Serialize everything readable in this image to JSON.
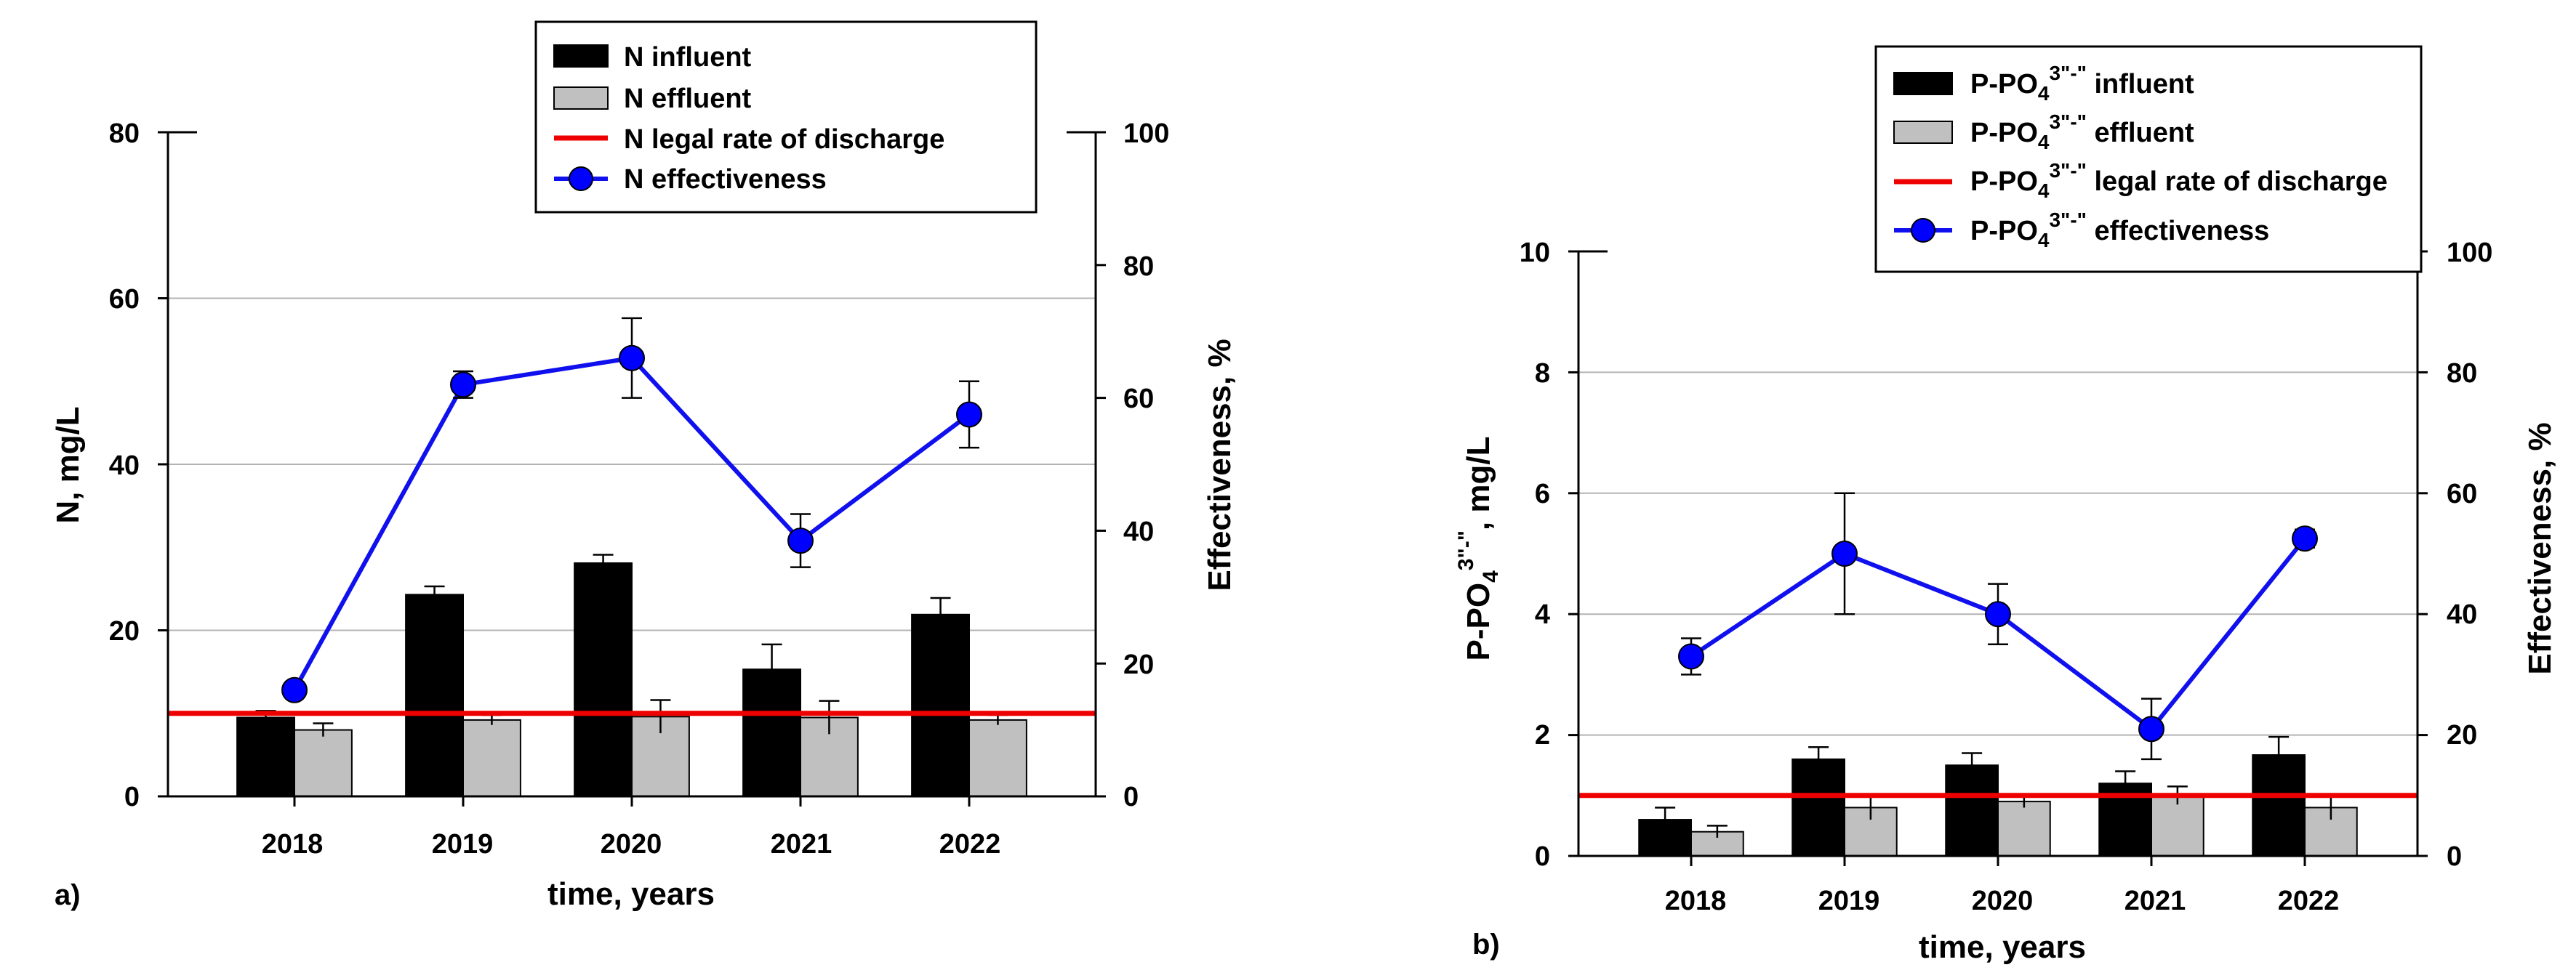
{
  "colors": {
    "influent": "#000000",
    "effluent": "#c0c0c0",
    "legal": "#ee0000",
    "effectiveness_line": "#1010ee",
    "effectiveness_marker": "#0000ff",
    "grid": "#b4b4b4"
  },
  "chart_data": [
    {
      "panel_label": "a)",
      "type": "bar",
      "categories": [
        "2018",
        "2019",
        "2020",
        "2021",
        "2022"
      ],
      "xlabel": "time, years",
      "ylabel": "N, mg/L",
      "ylabel_right": "Effectiveness, %",
      "ylim": [
        0,
        80
      ],
      "yticks": [
        "0",
        "20",
        "40",
        "60",
        "80"
      ],
      "ylim_right": [
        0,
        100
      ],
      "yticks_right": [
        "0",
        "20",
        "40",
        "60",
        "80",
        "100"
      ],
      "grid": true,
      "legend_position": "top-right",
      "legend": {
        "influent": {
          "text": "N influent"
        },
        "effluent": {
          "text": "N effluent"
        },
        "legal": {
          "text": "N legal rate of discharge"
        },
        "effectiveness": {
          "text": "N effectiveness"
        }
      },
      "series": [
        {
          "name": "N influent",
          "values": [
            9.5,
            24.3,
            28.1,
            15.3,
            21.9
          ],
          "errors": [
            0.8,
            1.0,
            1.0,
            3.0,
            2.0
          ]
        },
        {
          "name": "N effluent",
          "values": [
            8.0,
            9.2,
            9.6,
            9.5,
            9.2
          ],
          "errors": [
            0.8,
            0.6,
            2.0,
            2.0,
            0.6
          ]
        },
        {
          "name": "N effectiveness",
          "axis": "right",
          "values": [
            16,
            62,
            66,
            38.5,
            57.5
          ],
          "errors": [
            0,
            2,
            6,
            4,
            5
          ]
        }
      ],
      "legal_rate": 10
    },
    {
      "panel_label": "b)",
      "type": "bar",
      "categories": [
        "2018",
        "2019",
        "2020",
        "2021",
        "2022"
      ],
      "xlabel": "time, years",
      "ylabel": {
        "base": "P-PO",
        "sub": "4",
        "sup": "3\"-\"",
        "rest": ", mg/L"
      },
      "ylabel_right": "Effectiveness, %",
      "ylim": [
        0,
        10
      ],
      "yticks": [
        "0",
        "2",
        "4",
        "6",
        "8",
        "10"
      ],
      "ylim_right": [
        0,
        100
      ],
      "yticks_right": [
        "0",
        "20",
        "40",
        "60",
        "80",
        "100"
      ],
      "grid": true,
      "legend_position": "top-right",
      "legend": {
        "influent": {
          "base": "P-PO",
          "sub": "4",
          "sup": "3\"-\"",
          "rest": " influent"
        },
        "effluent": {
          "base": "P-PO",
          "sub": "4",
          "sup": "3\"-\"",
          "rest": " effluent"
        },
        "legal": {
          "base": "P-PO",
          "sub": "4",
          "sup": "3\"-\"",
          "rest": " legal rate of discharge"
        },
        "effectiveness": {
          "base": "P-PO",
          "sub": "4",
          "sup": "3\"-\"",
          "rest": " effectiveness"
        }
      },
      "series": [
        {
          "name": "P-PO4 influent",
          "values": [
            0.6,
            1.6,
            1.5,
            1.2,
            1.67
          ],
          "errors": [
            0.2,
            0.2,
            0.2,
            0.2,
            0.3
          ]
        },
        {
          "name": "P-PO4 effluent",
          "values": [
            0.4,
            0.8,
            0.9,
            1.0,
            0.8
          ],
          "errors": [
            0.1,
            0.2,
            0.1,
            0.15,
            0.2
          ]
        },
        {
          "name": "P-PO4 effectiveness",
          "axis": "right",
          "values": [
            33,
            50,
            40,
            21,
            52.5
          ],
          "errors": [
            3,
            10,
            5,
            5,
            1.5
          ]
        }
      ],
      "legal_rate": 1
    }
  ]
}
